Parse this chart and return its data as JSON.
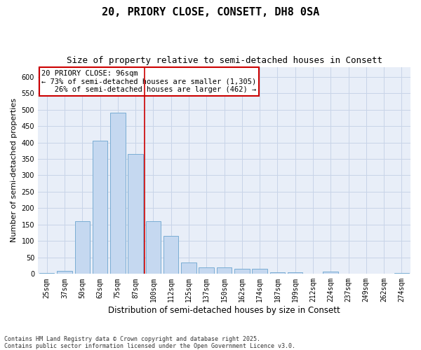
{
  "title1": "20, PRIORY CLOSE, CONSETT, DH8 0SA",
  "title2": "Size of property relative to semi-detached houses in Consett",
  "xlabel": "Distribution of semi-detached houses by size in Consett",
  "ylabel": "Number of semi-detached properties",
  "footnote": "Contains HM Land Registry data © Crown copyright and database right 2025.\nContains public sector information licensed under the Open Government Licence v3.0.",
  "bar_categories": [
    "25sqm",
    "37sqm",
    "50sqm",
    "62sqm",
    "75sqm",
    "87sqm",
    "100sqm",
    "112sqm",
    "125sqm",
    "137sqm",
    "150sqm",
    "162sqm",
    "174sqm",
    "187sqm",
    "199sqm",
    "212sqm",
    "224sqm",
    "237sqm",
    "249sqm",
    "262sqm",
    "274sqm"
  ],
  "bar_values": [
    2,
    10,
    160,
    405,
    490,
    365,
    160,
    115,
    35,
    20,
    20,
    15,
    15,
    5,
    5,
    0,
    7,
    0,
    0,
    0,
    2
  ],
  "bar_color": "#c5d8f0",
  "bar_edge_color": "#7aadd4",
  "grid_color": "#c8d4e8",
  "background_color": "#e8eef8",
  "vline_color": "#cc0000",
  "annotation_text": "20 PRIORY CLOSE: 96sqm\n← 73% of semi-detached houses are smaller (1,305)\n   26% of semi-detached houses are larger (462) →",
  "annotation_box_color": "#cc0000",
  "ylim": [
    0,
    630
  ],
  "yticks": [
    0,
    50,
    100,
    150,
    200,
    250,
    300,
    350,
    400,
    450,
    500,
    550,
    600
  ],
  "title1_fontsize": 11,
  "title2_fontsize": 9,
  "xlabel_fontsize": 8.5,
  "ylabel_fontsize": 8,
  "tick_fontsize": 7,
  "annotation_fontsize": 7.5
}
